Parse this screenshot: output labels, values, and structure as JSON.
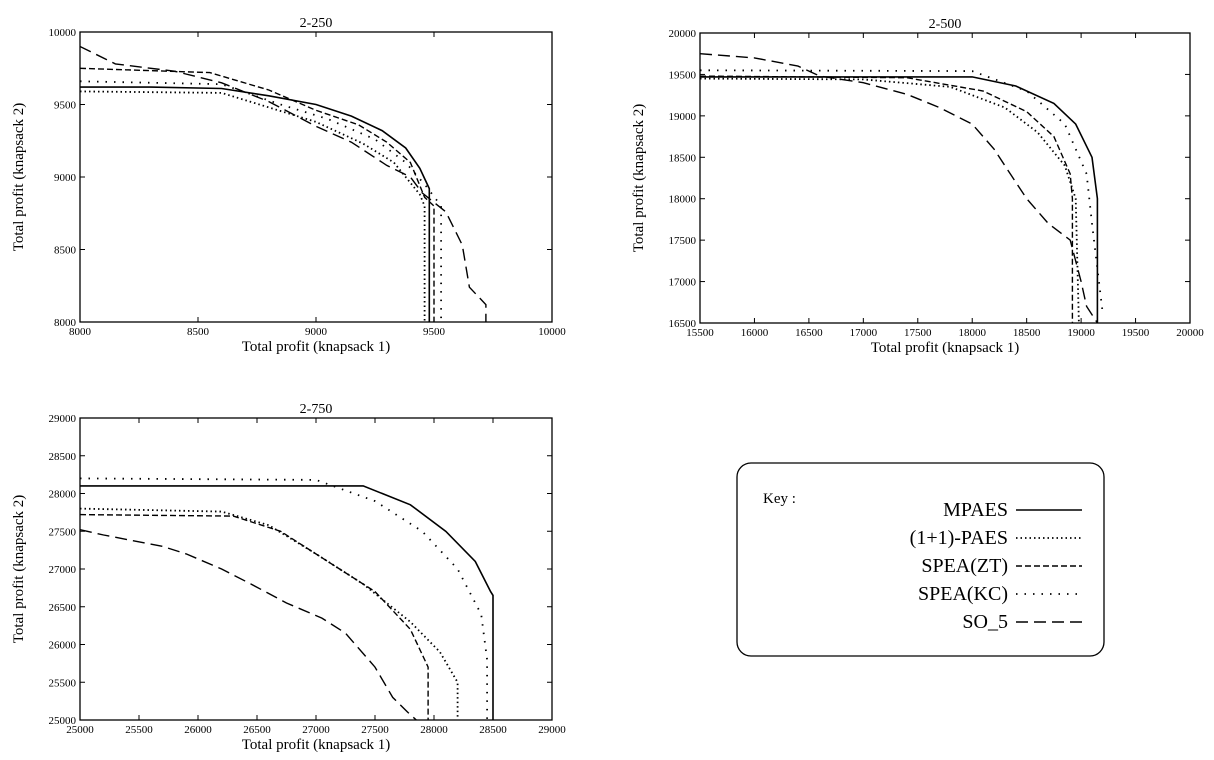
{
  "legend": {
    "title": "Key :",
    "entries": [
      {
        "name": "MPAES",
        "style": "solid"
      },
      {
        "name": "(1+1)-PAES",
        "style": "dotted"
      },
      {
        "name": "SPEA(ZT)",
        "style": "dashed"
      },
      {
        "name": "SPEA(KC)",
        "style": "sparse-dotted"
      },
      {
        "name": "SO_5",
        "style": "long-dashed"
      }
    ]
  },
  "line_color": "#000000",
  "chart_data": [
    {
      "type": "line",
      "title": "2-250",
      "xlabel": "Total profit (knapsack 1)",
      "ylabel": "Total profit (knapsack 2)",
      "xlim": [
        8000,
        10000
      ],
      "ylim": [
        8000,
        10000
      ],
      "xticks": [
        8000,
        8500,
        9000,
        9500,
        10000
      ],
      "yticks": [
        8000,
        8500,
        9000,
        9500,
        10000
      ],
      "series": [
        {
          "name": "MPAES",
          "points": [
            [
              8000,
              9620
            ],
            [
              8300,
              9620
            ],
            [
              8600,
              9610
            ],
            [
              8800,
              9560
            ],
            [
              9000,
              9500
            ],
            [
              9150,
              9420
            ],
            [
              9280,
              9320
            ],
            [
              9380,
              9200
            ],
            [
              9440,
              9060
            ],
            [
              9480,
              8920
            ],
            [
              9480,
              8000
            ]
          ]
        },
        {
          "name": "(1+1)-PAES",
          "points": [
            [
              8000,
              9590
            ],
            [
              8600,
              9580
            ],
            [
              8800,
              9480
            ],
            [
              9000,
              9380
            ],
            [
              9200,
              9230
            ],
            [
              9330,
              9100
            ],
            [
              9440,
              8880
            ],
            [
              9460,
              8800
            ],
            [
              9460,
              8000
            ]
          ]
        },
        {
          "name": "SPEA(ZT)",
          "points": [
            [
              8000,
              9750
            ],
            [
              8550,
              9720
            ],
            [
              8800,
              9600
            ],
            [
              9000,
              9460
            ],
            [
              9180,
              9360
            ],
            [
              9300,
              9240
            ],
            [
              9400,
              9100
            ],
            [
              9460,
              8860
            ],
            [
              9500,
              8800
            ],
            [
              9500,
              8000
            ]
          ]
        },
        {
          "name": "SPEA(KC)",
          "points": [
            [
              8000,
              9660
            ],
            [
              8600,
              9640
            ],
            [
              8850,
              9500
            ],
            [
              9050,
              9400
            ],
            [
              9250,
              9260
            ],
            [
              9380,
              9100
            ],
            [
              9470,
              8930
            ],
            [
              9530,
              8800
            ],
            [
              9530,
              8000
            ]
          ]
        },
        {
          "name": "SO_5",
          "points": [
            [
              8000,
              9900
            ],
            [
              8150,
              9780
            ],
            [
              8400,
              9730
            ],
            [
              8600,
              9650
            ],
            [
              8800,
              9520
            ],
            [
              9000,
              9350
            ],
            [
              9150,
              9240
            ],
            [
              9300,
              9080
            ],
            [
              9400,
              9000
            ],
            [
              9450,
              8890
            ],
            [
              9550,
              8760
            ],
            [
              9620,
              8530
            ],
            [
              9650,
              8240
            ],
            [
              9720,
              8120
            ],
            [
              9720,
              8000
            ]
          ]
        }
      ]
    },
    {
      "type": "line",
      "title": "2-500",
      "xlabel": "Total profit (knapsack 1)",
      "ylabel": "Total profit (knapsack 2)",
      "xlim": [
        15500,
        20000
      ],
      "ylim": [
        16500,
        20000
      ],
      "xticks": [
        15500,
        16000,
        16500,
        17000,
        17500,
        18000,
        18500,
        19000,
        19500,
        20000
      ],
      "yticks": [
        16500,
        17000,
        17500,
        18000,
        18500,
        19000,
        19500,
        20000
      ],
      "series": [
        {
          "name": "MPAES",
          "points": [
            [
              15500,
              19470
            ],
            [
              18000,
              19470
            ],
            [
              18400,
              19360
            ],
            [
              18750,
              19150
            ],
            [
              18950,
              18900
            ],
            [
              19100,
              18500
            ],
            [
              19150,
              18000
            ],
            [
              19150,
              16500
            ]
          ]
        },
        {
          "name": "(1+1)-PAES",
          "points": [
            [
              15500,
              19450
            ],
            [
              17000,
              19440
            ],
            [
              17800,
              19350
            ],
            [
              18300,
              19100
            ],
            [
              18600,
              18800
            ],
            [
              18850,
              18400
            ],
            [
              18950,
              18000
            ],
            [
              18980,
              16500
            ]
          ]
        },
        {
          "name": "SPEA(ZT)",
          "points": [
            [
              15500,
              19480
            ],
            [
              17400,
              19460
            ],
            [
              18100,
              19300
            ],
            [
              18500,
              19050
            ],
            [
              18750,
              18750
            ],
            [
              18900,
              18300
            ],
            [
              18920,
              18000
            ],
            [
              18920,
              16500
            ]
          ]
        },
        {
          "name": "SPEA(KC)",
          "points": [
            [
              15500,
              19550
            ],
            [
              18000,
              19540
            ],
            [
              18500,
              19300
            ],
            [
              18850,
              18900
            ],
            [
              19050,
              18300
            ],
            [
              19100,
              17700
            ],
            [
              19200,
              16600
            ]
          ]
        },
        {
          "name": "SO_5",
          "points": [
            [
              15500,
              19750
            ],
            [
              16000,
              19700
            ],
            [
              16400,
              19600
            ],
            [
              16600,
              19480
            ],
            [
              17000,
              19400
            ],
            [
              17400,
              19260
            ],
            [
              17700,
              19100
            ],
            [
              18000,
              18900
            ],
            [
              18200,
              18600
            ],
            [
              18350,
              18300
            ],
            [
              18500,
              18000
            ],
            [
              18700,
              17700
            ],
            [
              18900,
              17500
            ],
            [
              19000,
              17000
            ],
            [
              19050,
              16700
            ],
            [
              19150,
              16500
            ]
          ]
        }
      ]
    },
    {
      "type": "line",
      "title": "2-750",
      "xlabel": "Total profit (knapsack 1)",
      "ylabel": "Total profit (knapsack 2)",
      "xlim": [
        25000,
        29000
      ],
      "ylim": [
        25000,
        29000
      ],
      "xticks": [
        25000,
        25500,
        26000,
        26500,
        27000,
        27500,
        28000,
        28500,
        29000
      ],
      "yticks": [
        25000,
        25500,
        26000,
        26500,
        27000,
        27500,
        28000,
        28500,
        29000
      ],
      "series": [
        {
          "name": "MPAES",
          "points": [
            [
              25000,
              28100
            ],
            [
              27400,
              28100
            ],
            [
              27800,
              27850
            ],
            [
              28100,
              27500
            ],
            [
              28350,
              27100
            ],
            [
              28480,
              26700
            ],
            [
              28500,
              26650
            ],
            [
              28500,
              25000
            ]
          ]
        },
        {
          "name": "(1+1)-PAES",
          "points": [
            [
              25000,
              27800
            ],
            [
              26200,
              27760
            ],
            [
              26600,
              27580
            ],
            [
              27000,
              27200
            ],
            [
              27400,
              26800
            ],
            [
              27800,
              26300
            ],
            [
              28050,
              25900
            ],
            [
              28200,
              25500
            ],
            [
              28200,
              25000
            ]
          ]
        },
        {
          "name": "SPEA(ZT)",
          "points": [
            [
              25000,
              27720
            ],
            [
              26300,
              27700
            ],
            [
              26700,
              27500
            ],
            [
              27100,
              27100
            ],
            [
              27500,
              26700
            ],
            [
              27800,
              26200
            ],
            [
              27950,
              25700
            ],
            [
              27950,
              25000
            ]
          ]
        },
        {
          "name": "SPEA(KC)",
          "points": [
            [
              25000,
              28200
            ],
            [
              27000,
              28180
            ],
            [
              27500,
              27900
            ],
            [
              27900,
              27500
            ],
            [
              28200,
              27000
            ],
            [
              28400,
              26400
            ],
            [
              28450,
              25800
            ],
            [
              28450,
              25000
            ]
          ]
        },
        {
          "name": "SO_5",
          "points": [
            [
              25000,
              27520
            ],
            [
              25200,
              27450
            ],
            [
              25700,
              27300
            ],
            [
              25900,
              27200
            ],
            [
              26200,
              27000
            ],
            [
              26450,
              26800
            ],
            [
              26750,
              26550
            ],
            [
              27050,
              26350
            ],
            [
              27250,
              26150
            ],
            [
              27500,
              25700
            ],
            [
              27650,
              25300
            ],
            [
              27780,
              25100
            ],
            [
              27850,
              25000
            ]
          ]
        }
      ]
    }
  ]
}
